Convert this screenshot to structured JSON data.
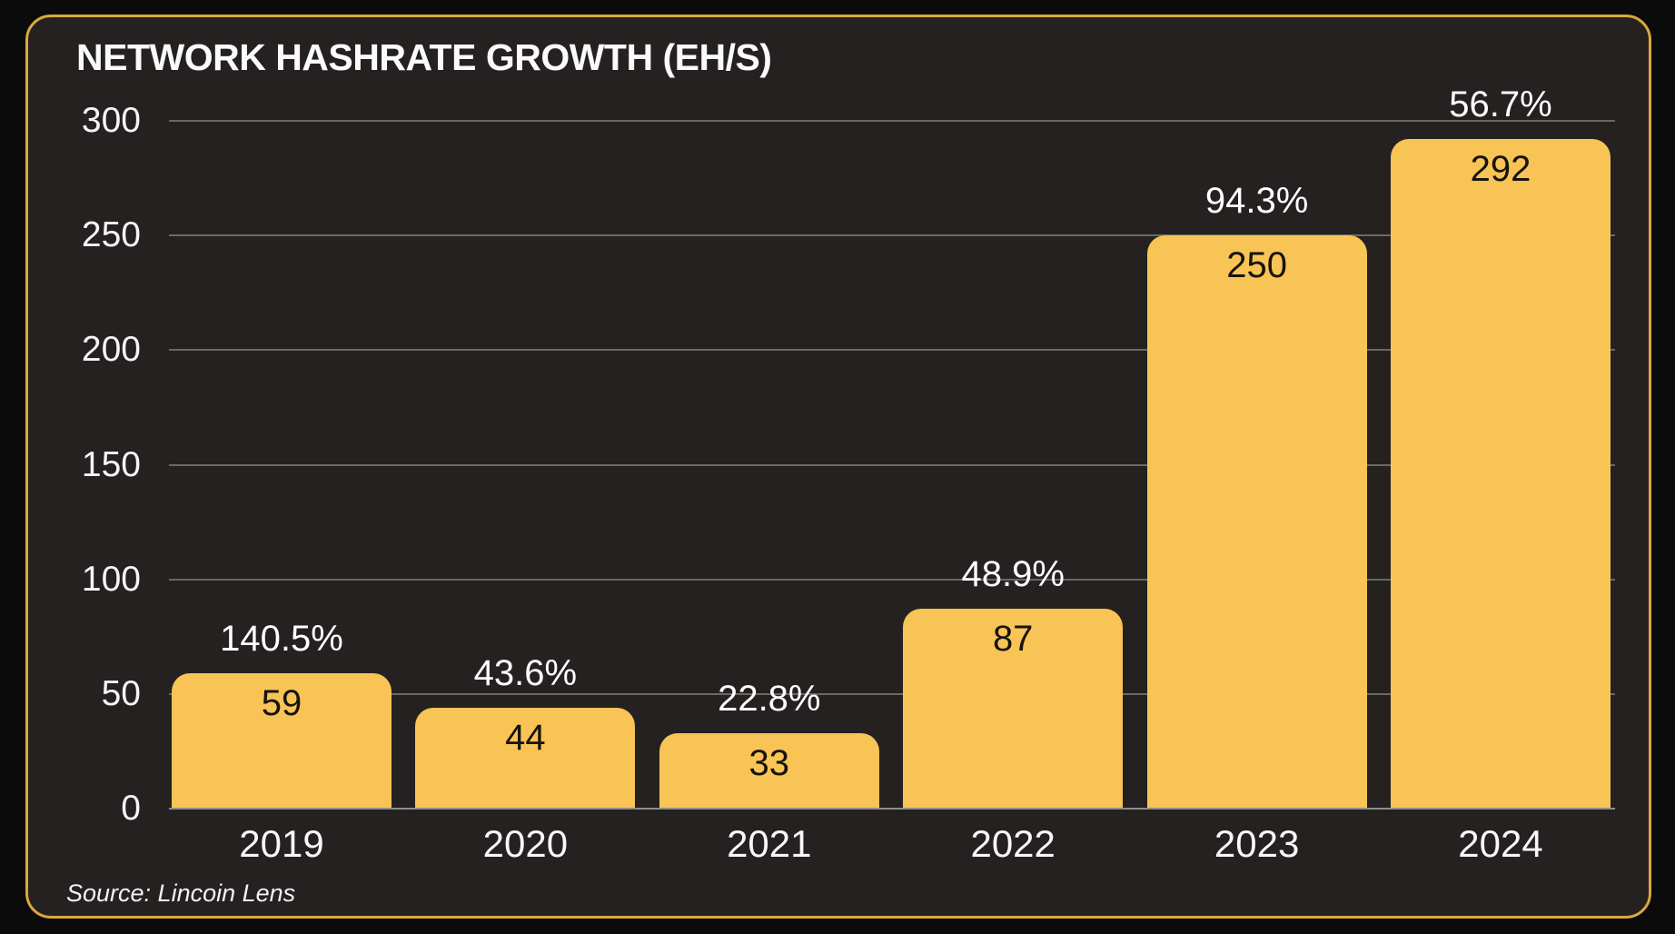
{
  "chart_data": {
    "type": "bar",
    "title": "NETWORK HASHRATE GROWTH (EH/S)",
    "categories": [
      "2019",
      "2020",
      "2021",
      "2022",
      "2023",
      "2024"
    ],
    "values": [
      59,
      44,
      33,
      87,
      250,
      292
    ],
    "bar_value_labels": [
      "59",
      "44",
      "33",
      "87",
      "250",
      "292"
    ],
    "growth_labels": [
      "140.5%",
      "43.6%",
      "22.8%",
      "48.9%",
      "94.3%",
      "56.7%"
    ],
    "y_ticks": [
      "0",
      "50",
      "100",
      "150",
      "200",
      "250",
      "300"
    ],
    "ylim": [
      0,
      300
    ],
    "xlabel": "",
    "ylabel": "",
    "legend": "none",
    "grid": "horizontal-lines",
    "source": "Source: Lincoin Lens"
  },
  "colors": {
    "outer_background": "#0B0B0B",
    "panel_background": "#242120",
    "panel_border": "#DBA83E",
    "bar_fill": "#F8C455",
    "gridline": "#6B6966",
    "axis_line": "#8F8D8A",
    "title_text": "#FAFAFA",
    "tick_text": "#F5F5F5",
    "growth_label_text": "#FFFFFF",
    "bar_value_text": "#17130E",
    "source_text": "#F2F2F2"
  }
}
